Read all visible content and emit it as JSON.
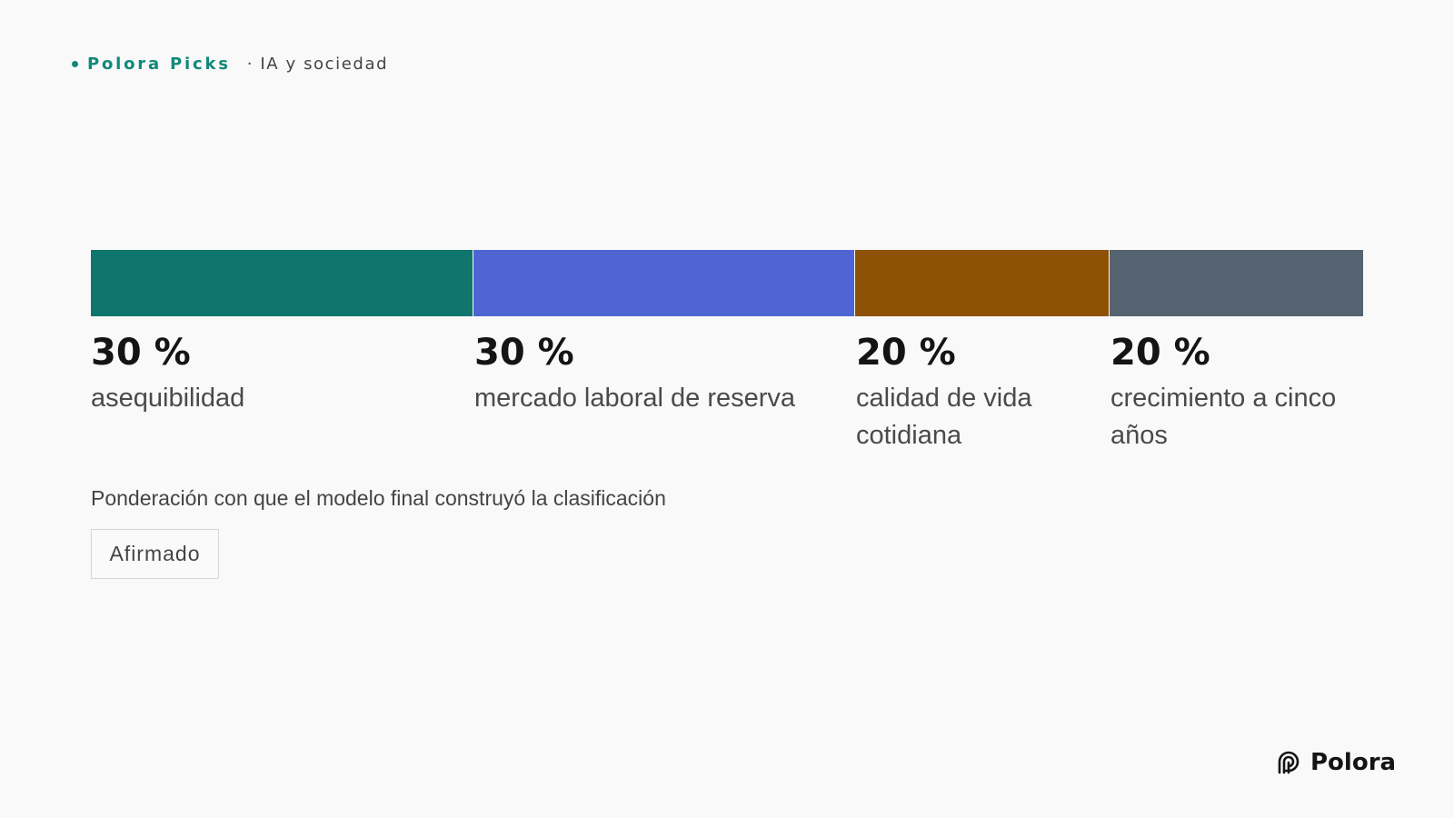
{
  "header": {
    "brand": "Polora Picks",
    "topic": "· IA y sociedad"
  },
  "chart_data": {
    "type": "bar",
    "subtype": "stacked-100",
    "categories": [
      "asequibilidad",
      "mercado laboral de reserva",
      "calidad de vida cotidiana",
      "crecimiento a cinco años"
    ],
    "values": [
      30,
      30,
      20,
      20
    ],
    "value_labels": [
      "30 %",
      "30 %",
      "20 %",
      "20 %"
    ],
    "colors": [
      "#0f766e",
      "#5065d4",
      "#8d5206",
      "#556270"
    ],
    "caption": "Ponderación con que el modelo final construyó la clasificación"
  },
  "badge": {
    "label": "Afirmado"
  },
  "footer": {
    "logo_text": "Polora",
    "logo_icon": "polora-logo-icon"
  }
}
